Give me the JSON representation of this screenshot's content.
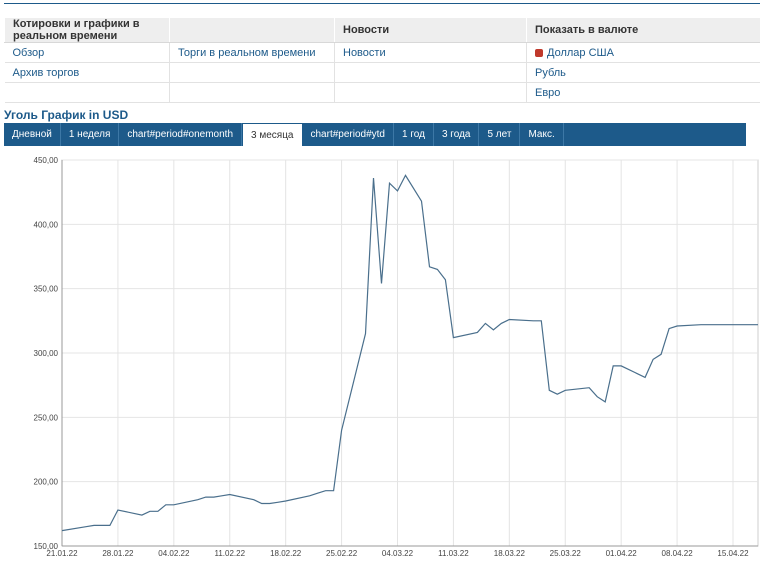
{
  "nav": {
    "headers": [
      "Котировки и графики в реальном времени",
      "",
      "Новости",
      "Показать в валюте"
    ],
    "rows": [
      [
        "Обзор",
        "Торги в реальном времени",
        "Новости",
        "Доллар США"
      ],
      [
        "Архив торгов",
        "",
        "",
        "Рубль"
      ],
      [
        "",
        "",
        "",
        "Евро"
      ]
    ]
  },
  "chart_heading": "Уголь График in USD",
  "tabs": [
    "Дневной",
    "1 неделя",
    "chart#period#onemonth",
    "3 месяца",
    "chart#period#ytd",
    "1 год",
    "3 года",
    "5 лет",
    "Макс."
  ],
  "active_tab": "3 месяца",
  "colors": {
    "accent": "#1d5a8a",
    "line": "#4a6f8c",
    "grid": "#e4e4e4"
  },
  "chart_data": {
    "type": "line",
    "title": "",
    "xlabel": "",
    "ylabel": "",
    "ylim": [
      150,
      450
    ],
    "yticks": [
      "150,00",
      "200,00",
      "250,00",
      "300,00",
      "350,00",
      "400,00",
      "450,00"
    ],
    "ytick_values": [
      150,
      200,
      250,
      300,
      350,
      400,
      450
    ],
    "xticks": [
      "21.01.22",
      "28.01.22",
      "04.02.22",
      "11.02.22",
      "18.02.22",
      "25.02.22",
      "04.03.22",
      "11.03.22",
      "18.03.22",
      "25.03.22",
      "01.04.22",
      "08.04.22",
      "15.04.22"
    ],
    "grid": true,
    "series": [
      {
        "x": [
          "2022-01-21",
          "2022-01-24",
          "2022-01-25",
          "2022-01-26",
          "2022-01-27",
          "2022-01-28",
          "2022-01-31",
          "2022-02-01",
          "2022-02-02",
          "2022-02-03",
          "2022-02-04",
          "2022-02-07",
          "2022-02-08",
          "2022-02-09",
          "2022-02-10",
          "2022-02-11",
          "2022-02-14",
          "2022-02-15",
          "2022-02-16",
          "2022-02-17",
          "2022-02-18",
          "2022-02-21",
          "2022-02-22",
          "2022-02-23",
          "2022-02-24",
          "2022-02-25",
          "2022-02-28",
          "2022-03-01",
          "2022-03-02",
          "2022-03-03",
          "2022-03-04",
          "2022-03-05",
          "2022-03-07",
          "2022-03-08",
          "2022-03-09",
          "2022-03-10",
          "2022-03-11",
          "2022-03-14",
          "2022-03-15",
          "2022-03-16",
          "2022-03-17",
          "2022-03-18",
          "2022-03-21",
          "2022-03-22",
          "2022-03-23",
          "2022-03-24",
          "2022-03-25",
          "2022-03-28",
          "2022-03-29",
          "2022-03-30",
          "2022-03-31",
          "2022-04-01",
          "2022-04-04",
          "2022-04-05",
          "2022-04-06",
          "2022-04-07",
          "2022-04-08",
          "2022-04-11",
          "2022-04-12",
          "2022-04-13",
          "2022-04-14",
          "2022-04-15",
          "2022-04-18"
        ],
        "values": [
          162,
          165,
          166,
          166,
          166,
          178,
          174,
          177,
          177,
          182,
          182,
          186,
          188,
          188,
          189,
          190,
          186,
          183,
          183,
          184,
          185,
          189,
          191,
          193,
          193,
          240,
          315,
          436,
          354,
          432,
          426,
          438,
          418,
          367,
          365,
          357,
          312,
          316,
          323,
          318,
          323,
          326,
          325,
          325,
          271,
          268,
          271,
          273,
          266,
          262,
          290,
          290,
          281,
          295,
          299,
          319,
          321,
          322,
          322,
          322,
          322,
          322,
          322
        ]
      }
    ]
  }
}
